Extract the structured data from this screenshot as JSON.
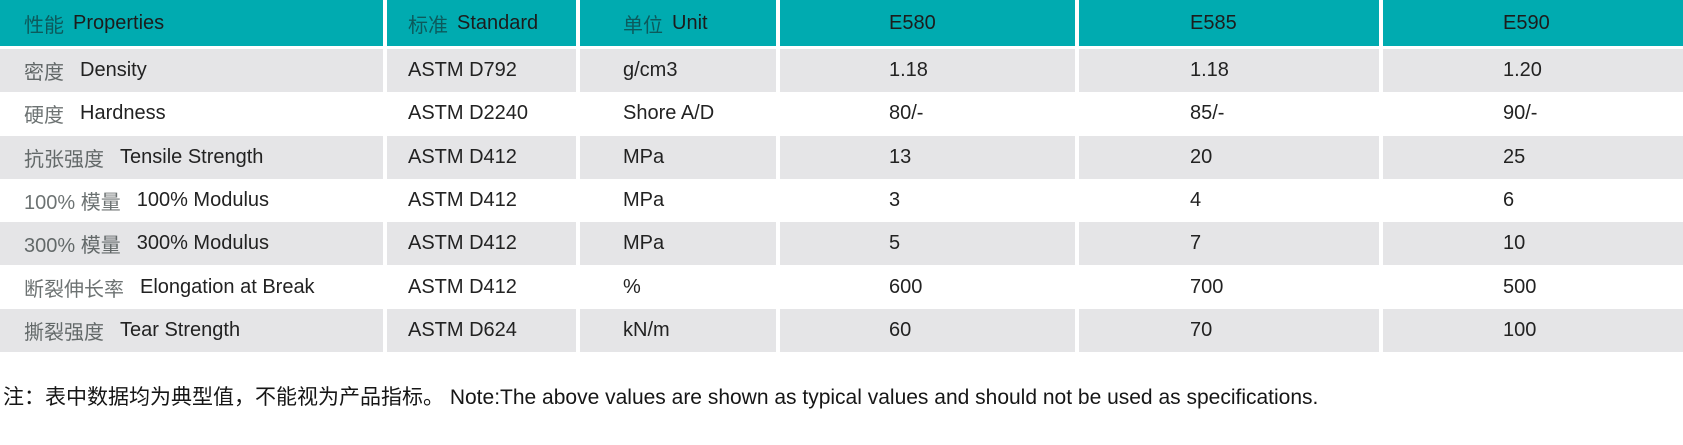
{
  "colors": {
    "header_bg": "#00abb0",
    "row_alt_bg": "#e5e5e7",
    "row_bg": "#ffffff",
    "divider": "#ffffff",
    "text": "#222222"
  },
  "table": {
    "header": {
      "properties_cn": "性能",
      "properties_en": "Properties",
      "standard_cn": "标准",
      "standard_en": "Standard",
      "unit_cn": "单位",
      "unit_en": "Unit",
      "e580": "E580",
      "e585": "E585",
      "e590": "E590"
    },
    "rows": [
      {
        "property_cn": "密度",
        "property_en": "Density",
        "standard": "ASTM D792",
        "unit": "g/cm3",
        "e580": "1.18",
        "e585": "1.18",
        "e590": "1.20"
      },
      {
        "property_cn": "硬度",
        "property_en": "Hardness",
        "standard": "ASTM D2240",
        "unit": "Shore A/D",
        "e580": "80/-",
        "e585": "85/-",
        "e590": "90/-"
      },
      {
        "property_cn": "抗张强度",
        "property_en": "Tensile Strength",
        "standard": "ASTM D412",
        "unit": "MPa",
        "e580": "13",
        "e585": "20",
        "e590": "25"
      },
      {
        "property_cn": "100% 模量",
        "property_en": "100% Modulus",
        "standard": "ASTM D412",
        "unit": "MPa",
        "e580": "3",
        "e585": "4",
        "e590": "6"
      },
      {
        "property_cn": "300% 模量",
        "property_en": "300% Modulus",
        "standard": "ASTM D412",
        "unit": "MPa",
        "e580": "5",
        "e585": "7",
        "e590": "10"
      },
      {
        "property_cn": "断裂伸长率",
        "property_en": "Elongation at Break",
        "standard": "ASTM D412",
        "unit": "%",
        "e580": "600",
        "e585": "700",
        "e590": "500"
      },
      {
        "property_cn": "撕裂强度",
        "property_en": "Tear Strength",
        "standard": "ASTM D624",
        "unit": "kN/m",
        "e580": "60",
        "e585": "70",
        "e590": "100"
      }
    ]
  },
  "note": {
    "text": "注：表中数据均为典型值，不能视为产品指标。 Note:The above values are shown as typical values and should not be used as specifications."
  }
}
